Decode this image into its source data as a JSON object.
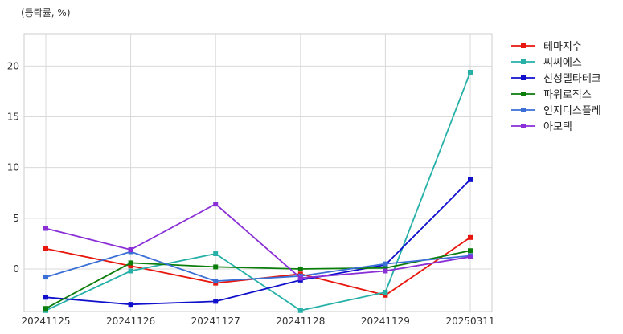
{
  "chart_data": {
    "type": "line",
    "unit_label": "(등락률, %)",
    "categories": [
      "20241125",
      "20241126",
      "20241127",
      "20241128",
      "20241129",
      "20250311"
    ],
    "ylim": [
      -4.2,
      23.2
    ],
    "yticks": [
      0,
      5,
      10,
      15,
      20
    ],
    "grid": true,
    "legend_position": "outside-top-right",
    "series": [
      {
        "name": "테마지수",
        "color": "#e8160c",
        "values": [
          2.0,
          0.3,
          -1.4,
          -0.5,
          -2.6,
          3.1
        ]
      },
      {
        "name": "씨씨에스",
        "color": "#26b0a8",
        "values": [
          -4.1,
          -0.2,
          1.5,
          -4.1,
          -2.3,
          19.4
        ]
      },
      {
        "name": "신성델타테크",
        "color": "#1010cc",
        "values": [
          -2.8,
          -3.5,
          -3.2,
          -1.1,
          0.4,
          8.8
        ]
      },
      {
        "name": "파워로직스",
        "color": "#0a7d0a",
        "values": [
          -3.9,
          0.6,
          0.2,
          0.0,
          0.1,
          1.8
        ]
      },
      {
        "name": "인지디스플레",
        "color": "#3a6fd6",
        "values": [
          -0.8,
          1.7,
          -1.2,
          -0.7,
          0.5,
          1.3
        ]
      },
      {
        "name": "아모텍",
        "color": "#8a2fd6",
        "values": [
          4.0,
          1.9,
          6.4,
          -0.9,
          -0.2,
          1.2
        ]
      }
    ]
  }
}
